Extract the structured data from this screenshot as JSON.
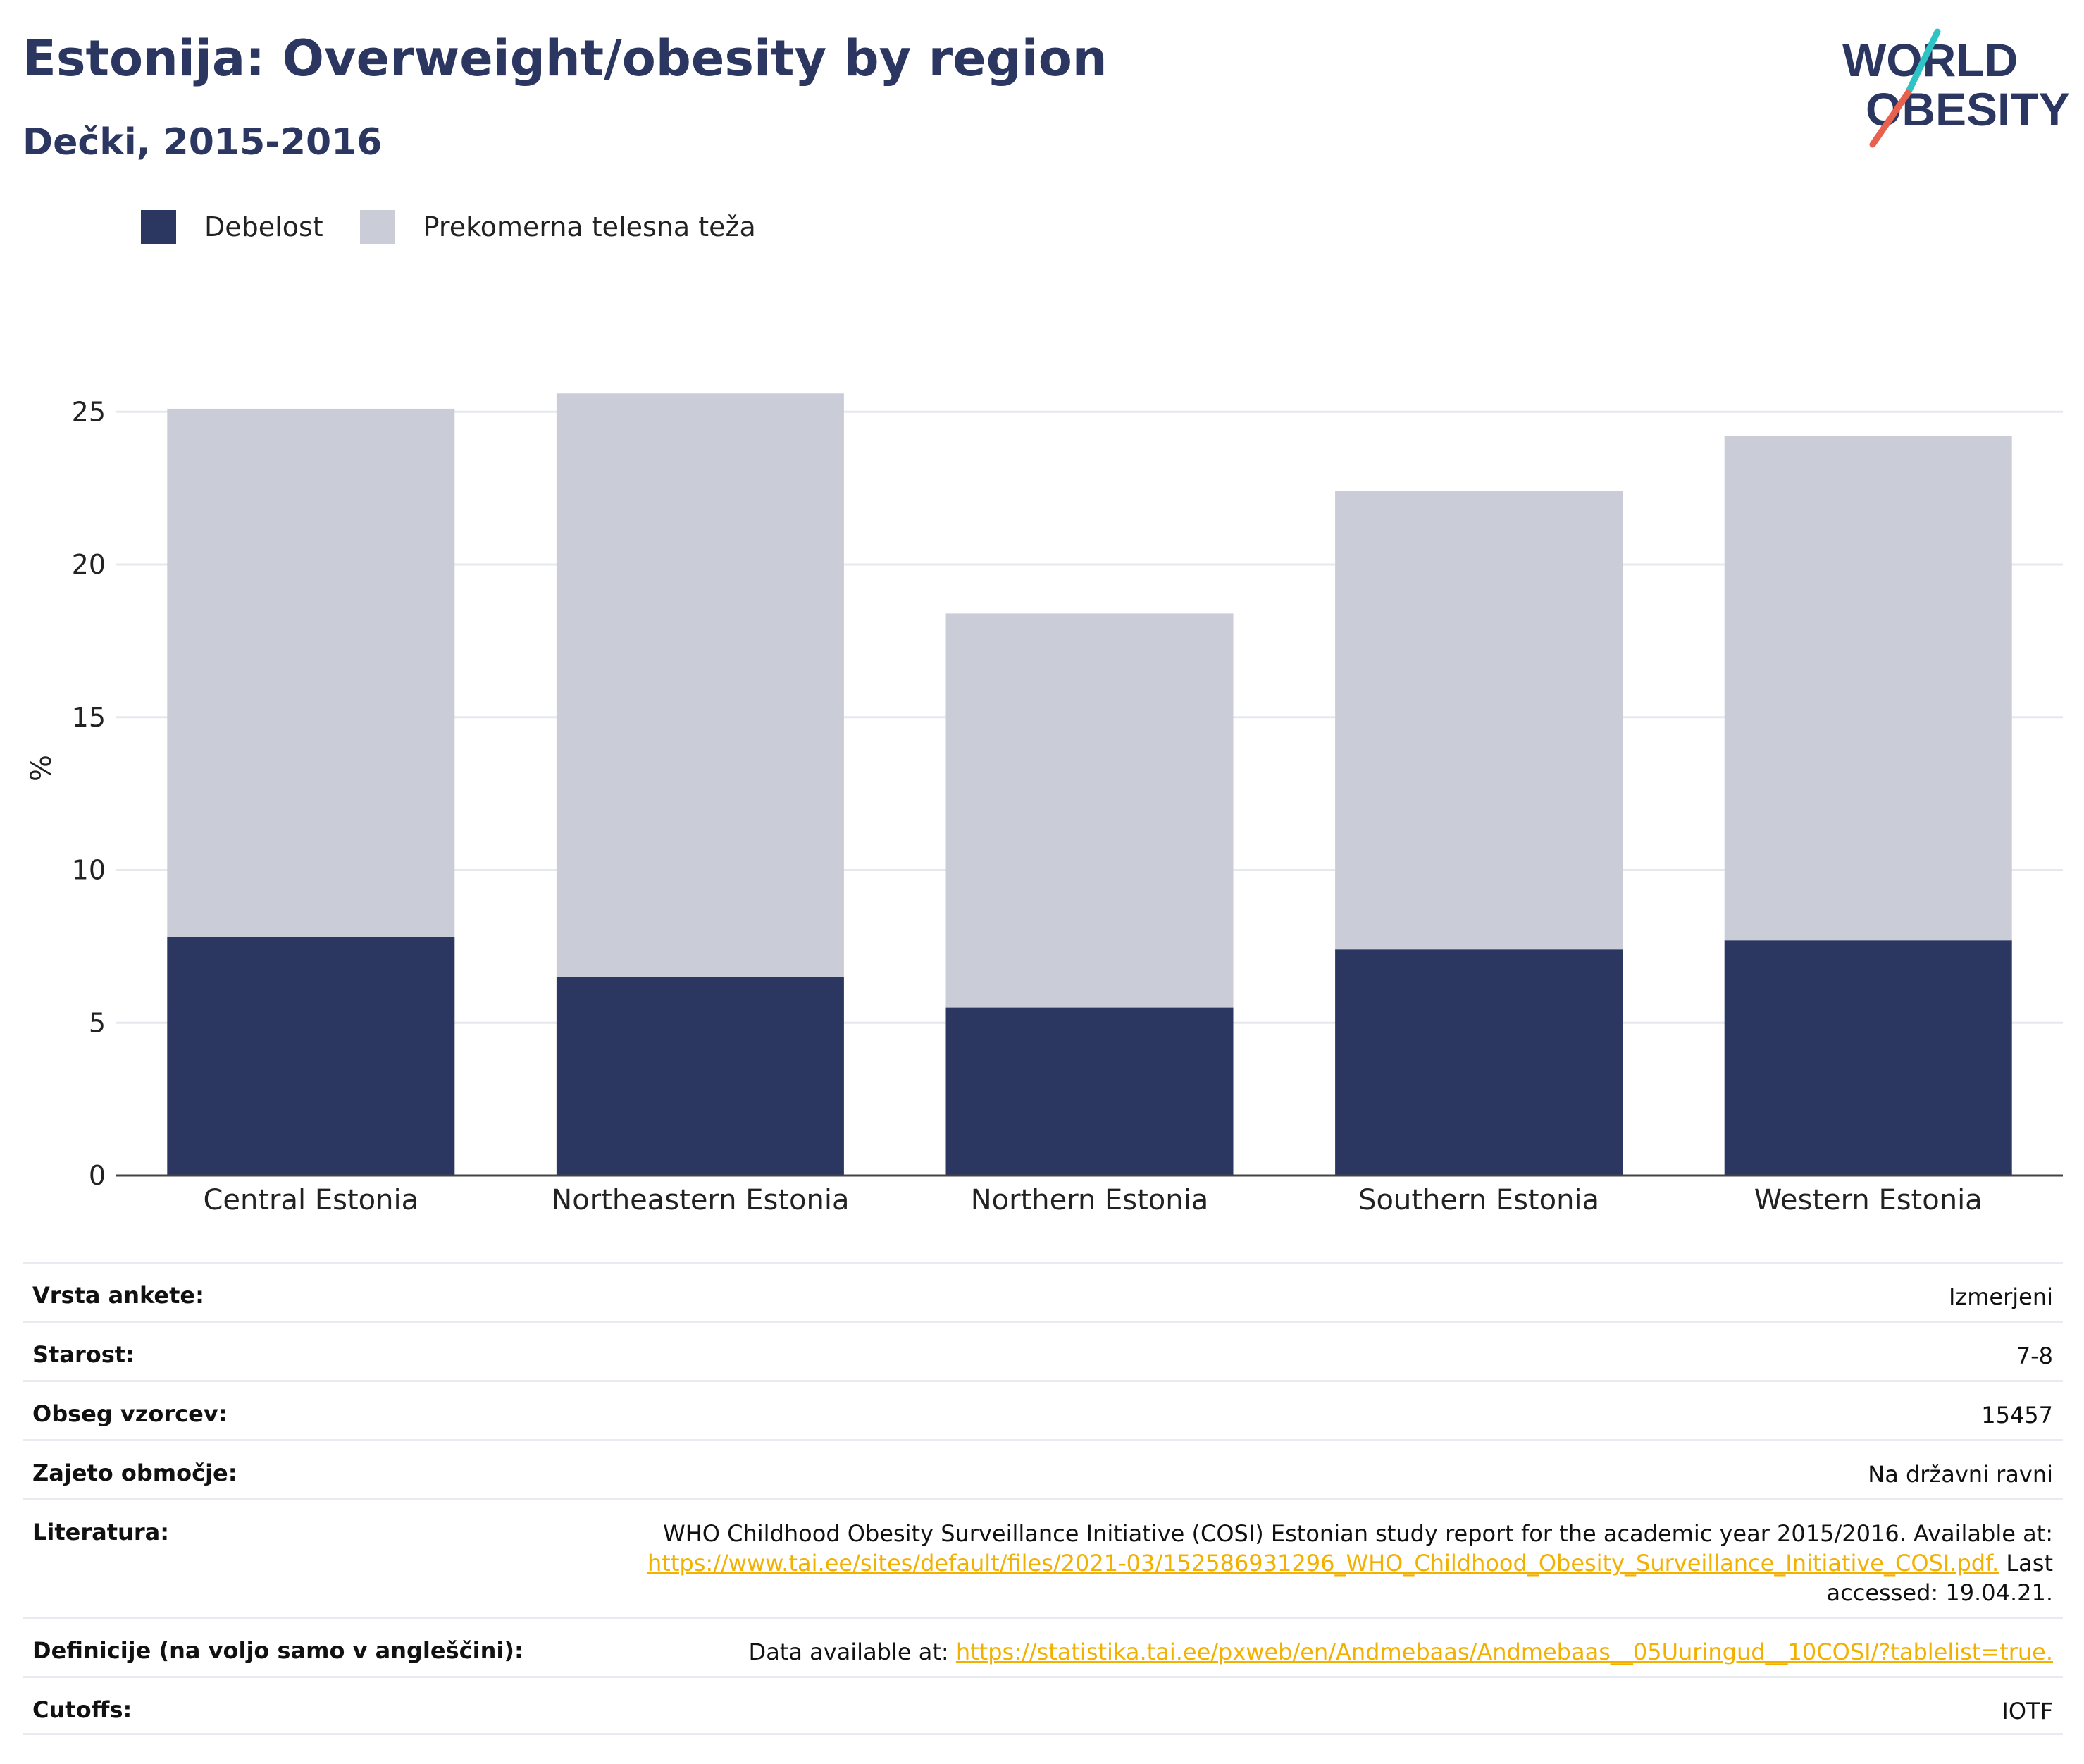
{
  "header": {
    "title": "Estonija: Overweight/obesity by region",
    "subtitle": "Dečki, 2015-2016"
  },
  "logo": {
    "line1": "WORLD",
    "line2": "OBESITY",
    "accent_teal": "#2ec4c6",
    "accent_red": "#e8614f"
  },
  "legend": [
    {
      "label": "Debelost",
      "color": "#2b3661"
    },
    {
      "label": "Prekomerna telesna teža",
      "color": "#cacdd8"
    }
  ],
  "chart_data": {
    "type": "bar",
    "stacked": true,
    "categories": [
      "Central Estonia",
      "Northeastern Estonia",
      "Northern Estonia",
      "Southern Estonia",
      "Western Estonia"
    ],
    "series": [
      {
        "name": "Debelost",
        "values": [
          7.8,
          6.5,
          5.5,
          7.4,
          7.7
        ],
        "color": "#2b3661"
      },
      {
        "name": "Prekomerna telesna teža",
        "values": [
          17.3,
          19.1,
          12.9,
          15.0,
          16.5
        ],
        "color": "#cacdd8"
      }
    ],
    "ylabel": "%",
    "ylim": [
      0,
      26
    ],
    "yticks": [
      0,
      5,
      10,
      15,
      20,
      25
    ],
    "grid": true,
    "legend_position": "top-left"
  },
  "info": [
    {
      "label": "Vrsta ankete:",
      "value": "Izmerjeni"
    },
    {
      "label": "Starost:",
      "value": "7-8"
    },
    {
      "label": "Obseg vzorcev:",
      "value": "15457"
    },
    {
      "label": "Zajeto območje:",
      "value": "Na državni ravni"
    },
    {
      "label": "Literatura:",
      "value_line1": "WHO Childhood Obesity Surveillance Initiative (COSI) Estonian study report for the academic year 2015/2016. Available at:",
      "link": "https://www.tai.ee/sites/default/files/2021-03/152586931296_WHO_Childhood_Obesity_Surveillance_Initiative_COSI.pdf.",
      "after_link": " Last",
      "value_line3": "accessed: 19.04.21."
    },
    {
      "label": "Definicije (na voljo samo v angleščini):",
      "prefix": "Data available at: ",
      "link": "https://statistika.tai.ee/pxweb/en/Andmebaas/Andmebaas__05Uuringud__10COSI/?tablelist=true."
    },
    {
      "label": "Cutoffs:",
      "value": "IOTF"
    }
  ]
}
